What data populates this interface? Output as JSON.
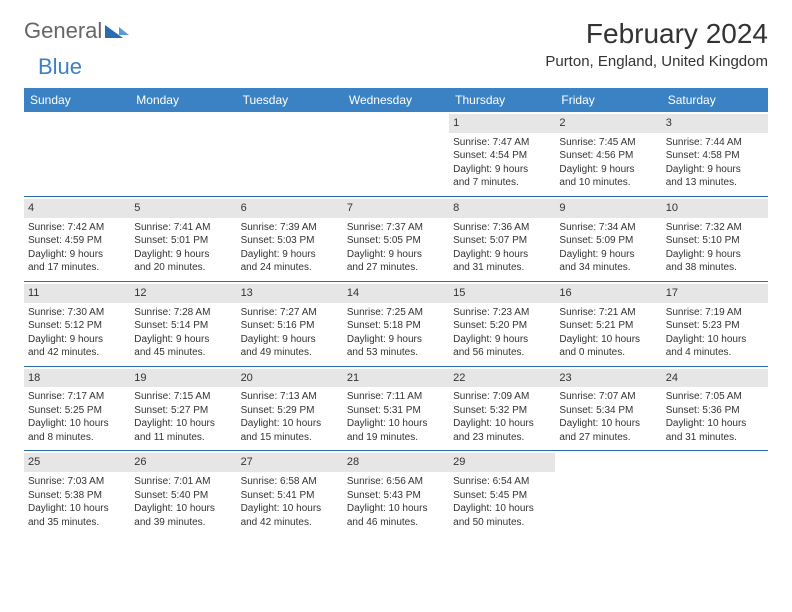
{
  "brand": {
    "word1": "General",
    "word2": "Blue"
  },
  "title": "February 2024",
  "location": "Purton, England, United Kingdom",
  "colors": {
    "header_bg": "#3b82c4",
    "week_border": "#2b6cb0",
    "daynum_bg": "#e6e6e6",
    "text": "#333333"
  },
  "day_headers": [
    "Sunday",
    "Monday",
    "Tuesday",
    "Wednesday",
    "Thursday",
    "Friday",
    "Saturday"
  ],
  "weeks": [
    [
      null,
      null,
      null,
      null,
      {
        "n": "1",
        "sr": "Sunrise: 7:47 AM",
        "ss": "Sunset: 4:54 PM",
        "d1": "Daylight: 9 hours",
        "d2": "and 7 minutes."
      },
      {
        "n": "2",
        "sr": "Sunrise: 7:45 AM",
        "ss": "Sunset: 4:56 PM",
        "d1": "Daylight: 9 hours",
        "d2": "and 10 minutes."
      },
      {
        "n": "3",
        "sr": "Sunrise: 7:44 AM",
        "ss": "Sunset: 4:58 PM",
        "d1": "Daylight: 9 hours",
        "d2": "and 13 minutes."
      }
    ],
    [
      {
        "n": "4",
        "sr": "Sunrise: 7:42 AM",
        "ss": "Sunset: 4:59 PM",
        "d1": "Daylight: 9 hours",
        "d2": "and 17 minutes."
      },
      {
        "n": "5",
        "sr": "Sunrise: 7:41 AM",
        "ss": "Sunset: 5:01 PM",
        "d1": "Daylight: 9 hours",
        "d2": "and 20 minutes."
      },
      {
        "n": "6",
        "sr": "Sunrise: 7:39 AM",
        "ss": "Sunset: 5:03 PM",
        "d1": "Daylight: 9 hours",
        "d2": "and 24 minutes."
      },
      {
        "n": "7",
        "sr": "Sunrise: 7:37 AM",
        "ss": "Sunset: 5:05 PM",
        "d1": "Daylight: 9 hours",
        "d2": "and 27 minutes."
      },
      {
        "n": "8",
        "sr": "Sunrise: 7:36 AM",
        "ss": "Sunset: 5:07 PM",
        "d1": "Daylight: 9 hours",
        "d2": "and 31 minutes."
      },
      {
        "n": "9",
        "sr": "Sunrise: 7:34 AM",
        "ss": "Sunset: 5:09 PM",
        "d1": "Daylight: 9 hours",
        "d2": "and 34 minutes."
      },
      {
        "n": "10",
        "sr": "Sunrise: 7:32 AM",
        "ss": "Sunset: 5:10 PM",
        "d1": "Daylight: 9 hours",
        "d2": "and 38 minutes."
      }
    ],
    [
      {
        "n": "11",
        "sr": "Sunrise: 7:30 AM",
        "ss": "Sunset: 5:12 PM",
        "d1": "Daylight: 9 hours",
        "d2": "and 42 minutes."
      },
      {
        "n": "12",
        "sr": "Sunrise: 7:28 AM",
        "ss": "Sunset: 5:14 PM",
        "d1": "Daylight: 9 hours",
        "d2": "and 45 minutes."
      },
      {
        "n": "13",
        "sr": "Sunrise: 7:27 AM",
        "ss": "Sunset: 5:16 PM",
        "d1": "Daylight: 9 hours",
        "d2": "and 49 minutes."
      },
      {
        "n": "14",
        "sr": "Sunrise: 7:25 AM",
        "ss": "Sunset: 5:18 PM",
        "d1": "Daylight: 9 hours",
        "d2": "and 53 minutes."
      },
      {
        "n": "15",
        "sr": "Sunrise: 7:23 AM",
        "ss": "Sunset: 5:20 PM",
        "d1": "Daylight: 9 hours",
        "d2": "and 56 minutes."
      },
      {
        "n": "16",
        "sr": "Sunrise: 7:21 AM",
        "ss": "Sunset: 5:21 PM",
        "d1": "Daylight: 10 hours",
        "d2": "and 0 minutes."
      },
      {
        "n": "17",
        "sr": "Sunrise: 7:19 AM",
        "ss": "Sunset: 5:23 PM",
        "d1": "Daylight: 10 hours",
        "d2": "and 4 minutes."
      }
    ],
    [
      {
        "n": "18",
        "sr": "Sunrise: 7:17 AM",
        "ss": "Sunset: 5:25 PM",
        "d1": "Daylight: 10 hours",
        "d2": "and 8 minutes."
      },
      {
        "n": "19",
        "sr": "Sunrise: 7:15 AM",
        "ss": "Sunset: 5:27 PM",
        "d1": "Daylight: 10 hours",
        "d2": "and 11 minutes."
      },
      {
        "n": "20",
        "sr": "Sunrise: 7:13 AM",
        "ss": "Sunset: 5:29 PM",
        "d1": "Daylight: 10 hours",
        "d2": "and 15 minutes."
      },
      {
        "n": "21",
        "sr": "Sunrise: 7:11 AM",
        "ss": "Sunset: 5:31 PM",
        "d1": "Daylight: 10 hours",
        "d2": "and 19 minutes."
      },
      {
        "n": "22",
        "sr": "Sunrise: 7:09 AM",
        "ss": "Sunset: 5:32 PM",
        "d1": "Daylight: 10 hours",
        "d2": "and 23 minutes."
      },
      {
        "n": "23",
        "sr": "Sunrise: 7:07 AM",
        "ss": "Sunset: 5:34 PM",
        "d1": "Daylight: 10 hours",
        "d2": "and 27 minutes."
      },
      {
        "n": "24",
        "sr": "Sunrise: 7:05 AM",
        "ss": "Sunset: 5:36 PM",
        "d1": "Daylight: 10 hours",
        "d2": "and 31 minutes."
      }
    ],
    [
      {
        "n": "25",
        "sr": "Sunrise: 7:03 AM",
        "ss": "Sunset: 5:38 PM",
        "d1": "Daylight: 10 hours",
        "d2": "and 35 minutes."
      },
      {
        "n": "26",
        "sr": "Sunrise: 7:01 AM",
        "ss": "Sunset: 5:40 PM",
        "d1": "Daylight: 10 hours",
        "d2": "and 39 minutes."
      },
      {
        "n": "27",
        "sr": "Sunrise: 6:58 AM",
        "ss": "Sunset: 5:41 PM",
        "d1": "Daylight: 10 hours",
        "d2": "and 42 minutes."
      },
      {
        "n": "28",
        "sr": "Sunrise: 6:56 AM",
        "ss": "Sunset: 5:43 PM",
        "d1": "Daylight: 10 hours",
        "d2": "and 46 minutes."
      },
      {
        "n": "29",
        "sr": "Sunrise: 6:54 AM",
        "ss": "Sunset: 5:45 PM",
        "d1": "Daylight: 10 hours",
        "d2": "and 50 minutes."
      },
      null,
      null
    ]
  ]
}
